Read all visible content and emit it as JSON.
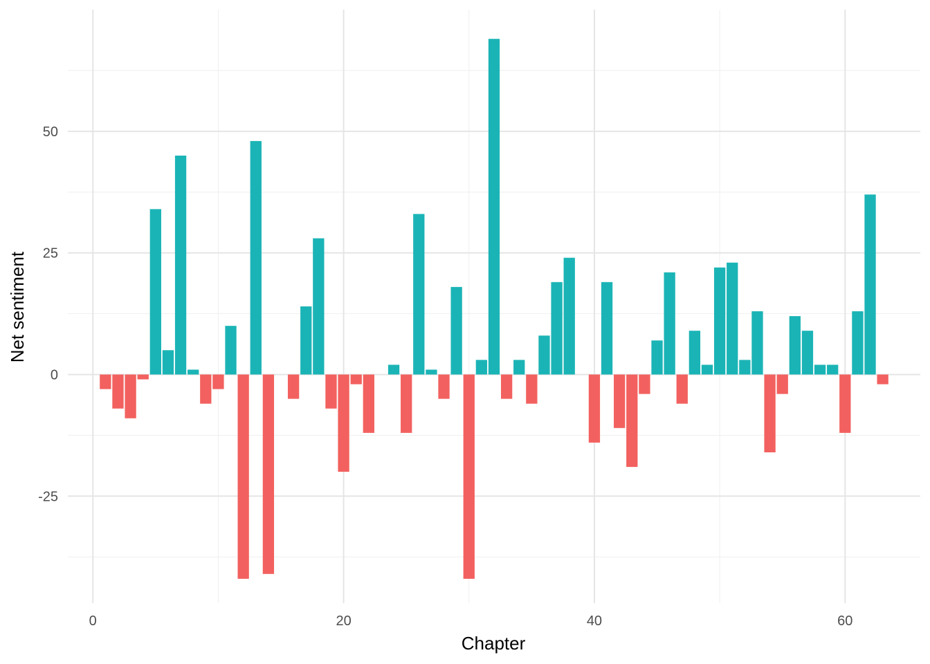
{
  "chart_data": {
    "type": "bar",
    "title": "",
    "xlabel": "Chapter",
    "ylabel": "Net sentiment",
    "xlim": [
      -2,
      66
    ],
    "ylim": [
      -47,
      75
    ],
    "x_ticks": [
      0,
      20,
      40,
      60
    ],
    "y_ticks": [
      -25,
      0,
      25,
      50
    ],
    "grid": true,
    "legend": "none",
    "colors": {
      "positive": "#1bb4b6",
      "negative": "#f2615f"
    },
    "x": [
      1,
      2,
      3,
      4,
      5,
      6,
      7,
      8,
      9,
      10,
      11,
      12,
      13,
      14,
      15,
      16,
      17,
      18,
      19,
      20,
      21,
      22,
      23,
      24,
      25,
      26,
      27,
      28,
      29,
      30,
      31,
      32,
      33,
      34,
      35,
      36,
      37,
      38,
      39,
      40,
      41,
      42,
      43,
      44,
      45,
      46,
      47,
      48,
      49,
      50,
      51,
      52,
      53,
      54,
      55,
      56,
      57,
      58,
      59,
      60,
      61,
      62,
      63
    ],
    "values": [
      -3,
      -7,
      -9,
      -1,
      34,
      5,
      45,
      1,
      -6,
      -3,
      10,
      -42,
      48,
      -41,
      0,
      -5,
      14,
      28,
      -7,
      -20,
      -2,
      -12,
      0,
      2,
      -12,
      33,
      1,
      -5,
      18,
      -42,
      3,
      69,
      -5,
      3,
      -6,
      8,
      19,
      24,
      0,
      -14,
      19,
      -11,
      -19,
      -4,
      7,
      21,
      -6,
      9,
      2,
      22,
      23,
      3,
      13,
      -16,
      -4,
      12,
      9,
      2,
      2,
      -12,
      13,
      37,
      -2
    ]
  }
}
